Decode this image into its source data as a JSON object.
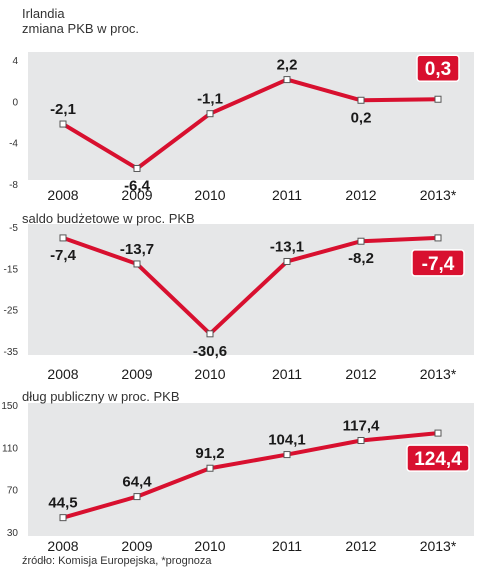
{
  "figure": {
    "country": "Irlandia",
    "source": "źródło: Komisja Europejska, *prognoza",
    "colors": {
      "line": "#d8102f",
      "panel": "#e6e7e8",
      "highlight_bg": "#d8102f",
      "highlight_text": "#ffffff",
      "text": "#1a1a1a",
      "tick": "#333333"
    }
  },
  "chart_data": [
    {
      "type": "line",
      "title": "zmiana PKB w proc.",
      "categories": [
        "2008",
        "2009",
        "2010",
        "2011",
        "2012",
        "2013*"
      ],
      "values": [
        -2.1,
        -6.4,
        -1.1,
        2.2,
        0.2,
        0.3
      ],
      "labels": [
        "-2,1",
        "-6,4",
        "-1,1",
        "2,2",
        "0,2",
        "0,3"
      ],
      "highlight_index": 5,
      "yticks": [
        4,
        0,
        -4,
        -8
      ],
      "ytick_labels": [
        "4",
        "0",
        "-4",
        "-8"
      ],
      "ylim": [
        -8,
        4
      ]
    },
    {
      "type": "line",
      "title": "saldo budżetowe w proc. PKB",
      "categories": [
        "2008",
        "2009",
        "2010",
        "2011",
        "2012",
        "2013*"
      ],
      "values": [
        -7.4,
        -13.7,
        -30.6,
        -13.1,
        -8.2,
        -7.4
      ],
      "labels": [
        "-7,4",
        "-13,7",
        "-30,6",
        "-13,1",
        "-8,2",
        "-7,4"
      ],
      "highlight_index": 5,
      "yticks": [
        -5,
        -15,
        -25,
        -35
      ],
      "ytick_labels": [
        "-5",
        "-15",
        "-25",
        "-35"
      ],
      "ylim": [
        -35,
        -5
      ]
    },
    {
      "type": "line",
      "title": "dług publiczny w proc. PKB",
      "categories": [
        "2008",
        "2009",
        "2010",
        "2011",
        "2012",
        "2013*"
      ],
      "values": [
        44.5,
        64.4,
        91.2,
        104.1,
        117.4,
        124.4
      ],
      "labels": [
        "44,5",
        "64,4",
        "91,2",
        "104,1",
        "117,4",
        "124,4"
      ],
      "highlight_index": 5,
      "yticks": [
        150,
        110,
        70,
        30
      ],
      "ytick_labels": [
        "150",
        "110",
        "70",
        "30"
      ],
      "ylim": [
        30,
        150
      ]
    }
  ]
}
